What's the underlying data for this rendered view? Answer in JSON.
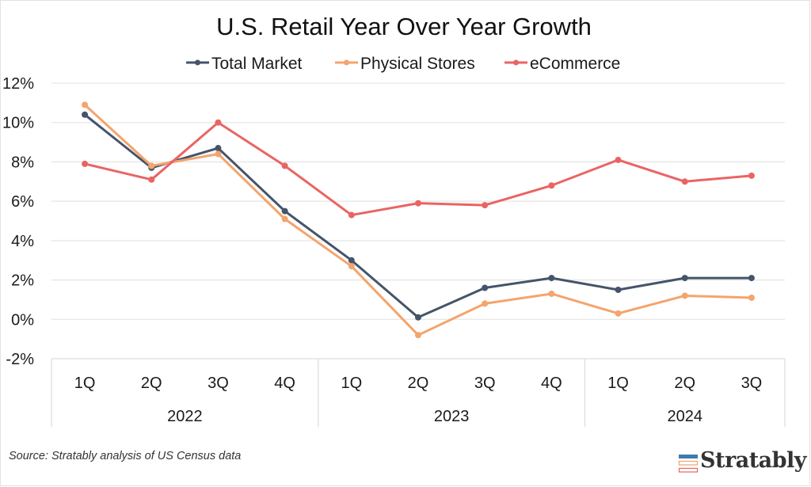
{
  "chart_data": {
    "type": "line",
    "title": "U.S. Retail Year Over Year Growth",
    "xlabel": "",
    "ylabel": "",
    "categories": [
      "1Q",
      "2Q",
      "3Q",
      "4Q",
      "1Q",
      "2Q",
      "3Q",
      "4Q",
      "1Q",
      "2Q",
      "3Q"
    ],
    "category_groups": [
      {
        "label": "2022",
        "count": 4
      },
      {
        "label": "2023",
        "count": 4
      },
      {
        "label": "2024",
        "count": 3
      }
    ],
    "ylim": [
      -2,
      12
    ],
    "yticks": [
      -2,
      0,
      2,
      4,
      6,
      8,
      10,
      12
    ],
    "ytick_labels": [
      "-2%",
      "0%",
      "2%",
      "4%",
      "6%",
      "8%",
      "10%",
      "12%"
    ],
    "grid": true,
    "legend_position": "top-center",
    "series": [
      {
        "name": "Total Market",
        "color": "#44546a",
        "values": [
          10.4,
          7.7,
          8.7,
          5.5,
          3.0,
          0.1,
          1.6,
          2.1,
          1.5,
          2.1,
          2.1
        ]
      },
      {
        "name": "Physical Stores",
        "color": "#f4a46c",
        "values": [
          10.9,
          7.8,
          8.4,
          5.1,
          2.7,
          -0.8,
          0.8,
          1.3,
          0.3,
          1.2,
          1.1
        ]
      },
      {
        "name": "eCommerce",
        "color": "#ea6464",
        "values": [
          7.9,
          7.1,
          10.0,
          7.8,
          5.3,
          5.9,
          5.8,
          6.8,
          8.1,
          7.0,
          7.3
        ]
      }
    ]
  },
  "footer": {
    "source": "Source: Stratably analysis of US Census data",
    "brand": "Stratably",
    "brand_colors": [
      "#3f7bac",
      "#f4a46c",
      "#ea6464"
    ]
  }
}
